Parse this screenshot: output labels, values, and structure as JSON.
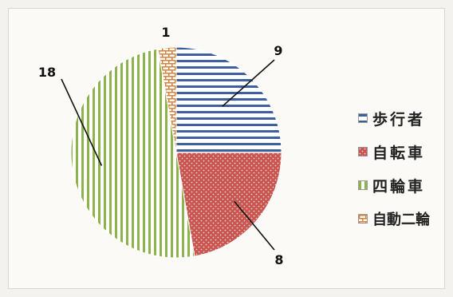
{
  "chart_data": {
    "type": "pie",
    "title": "",
    "categories": [
      "歩行者",
      "自転車",
      "四輪車",
      "自動二輪"
    ],
    "values": [
      9,
      8,
      18,
      1
    ],
    "legend_position": "right",
    "colors": {
      "歩行者": "#3d5f9e",
      "自転車": "#c8554f",
      "四輪車": "#8db34a",
      "自動二輪": "#d8813d"
    },
    "patterns": {
      "歩行者": "horizontal-stripes",
      "自転車": "dots",
      "四輪車": "vertical-stripes",
      "自動二輪": "brick"
    }
  }
}
